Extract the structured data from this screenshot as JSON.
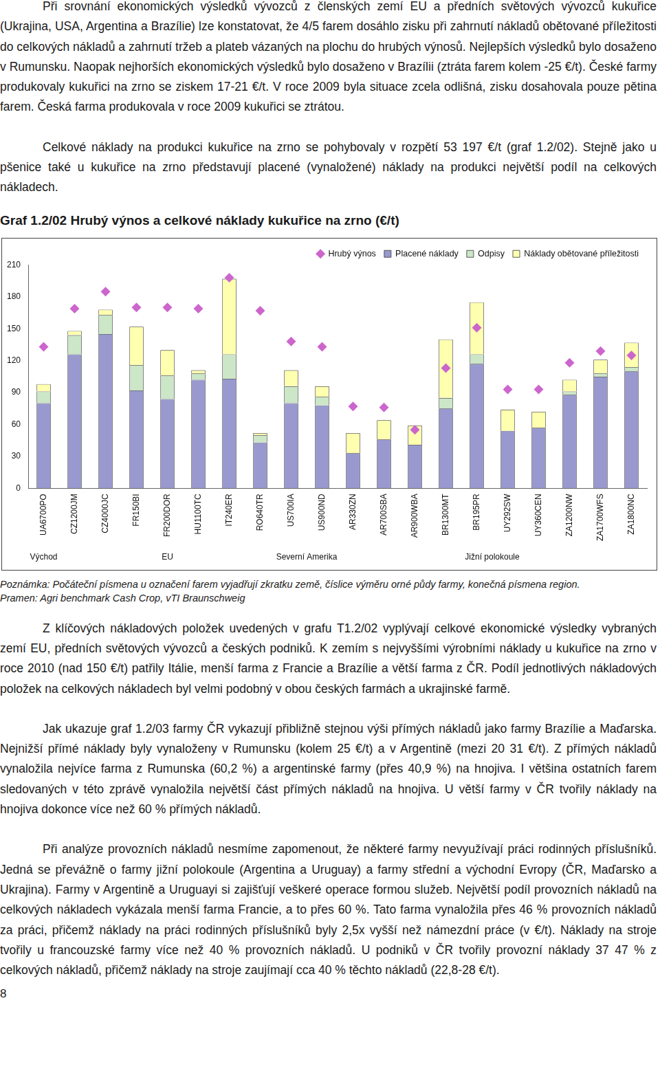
{
  "paragraphs_top": [
    "Při srovnání ekonomických výsledků vývozců z členských zemí EU a předních světových vývozců kukuřice (Ukrajina, USA, Argentina a Brazílie) lze konstatovat, že 4/5 farem dosáhlo zisku při zahrnutí nákladů obětované příležitosti do celkových nákladů a zahrnutí tržeb a plateb vázaných na plochu do hrubých výnosů. Nejlepších výsledků bylo dosaženo v Rumunsku. Naopak nejhorších ekonomických výsledků bylo dosaženo v Brazílii (ztráta farem kolem -25 €/t). České farmy produkovaly kukuřici na zrno se ziskem 17-21 €/t. V roce 2009 byla situace zcela odlišná, zisku dosahovala pouze pětina farem. Česká farma produkovala v roce 2009 kukuřici se ztrátou.",
    "Celkové náklady na produkci kukuřice na zrno se pohybovaly v rozpětí 53 197 €/t (graf 1.2/02). Stejně jako u pšenice také u kukuřice na zrno představují placené (vynaložené) náklady na produkci největší podíl na celkových nákladech."
  ],
  "chart_title": "Graf 1.2/02 Hrubý výnos a celkové náklady kukuřice na zrno (€/t)",
  "chart_data": {
    "type": "bar",
    "stacked": true,
    "categories": [
      "UA6700PO",
      "CZ1200JM",
      "CZ4000JC",
      "FR150BI",
      "FR200DOR",
      "HU1100TC",
      "IT240ER",
      "RO640TR",
      "US700IA",
      "US900ND",
      "AR330ZN",
      "AR700SBA",
      "AR900WBA",
      "BR1300MT",
      "BR195PR",
      "UY292SW",
      "UY360CEN",
      "ZA1200NW",
      "ZA1700WFS",
      "ZA1800NC"
    ],
    "series": [
      {
        "name": "Placené náklady",
        "type": "bar",
        "color": "#9999d0",
        "values": [
          80,
          126,
          145,
          92,
          84,
          102,
          103,
          43,
          80,
          78,
          33,
          46,
          41,
          75,
          117,
          54,
          57,
          88,
          105,
          110
        ]
      },
      {
        "name": "Odpisy",
        "type": "bar",
        "color": "#cce6c8",
        "values": [
          11,
          18,
          18,
          24,
          22,
          6,
          23,
          7,
          16,
          8,
          0,
          0,
          0,
          10,
          9,
          0,
          0,
          3,
          3,
          4
        ]
      },
      {
        "name": "Náklady obětované příležitosti",
        "type": "bar",
        "color": "#ffffb0",
        "values": [
          7,
          4,
          5,
          36,
          24,
          3,
          71,
          2,
          15,
          10,
          19,
          18,
          18,
          55,
          49,
          20,
          15,
          11,
          13,
          23
        ]
      },
      {
        "name": "Hrubý výnos",
        "type": "scatter",
        "marker": "diamond",
        "color": "#cc66cc",
        "values": [
          133,
          169,
          185,
          170,
          170,
          169,
          198,
          167,
          138,
          133,
          77,
          76,
          55,
          113,
          151,
          93,
          93,
          118,
          129,
          125
        ]
      }
    ],
    "groups": [
      {
        "label": "Východ",
        "from": "UA6700PO",
        "to": "UA6700PO"
      },
      {
        "label": "EU",
        "from": "CZ1200JM",
        "to": "RO640TR"
      },
      {
        "label": "Severní Amerika",
        "from": "US700IA",
        "to": "US900ND"
      },
      {
        "label": "Jižní polokoule",
        "from": "AR330ZN",
        "to": "ZA1800NC"
      }
    ],
    "ylim": [
      0,
      210
    ],
    "yticks": [
      0,
      30,
      60,
      90,
      120,
      150,
      180,
      210
    ],
    "grid": false,
    "legend": "top"
  },
  "note": "Poznámka: Počáteční písmena u označení farem vyjadřují zkratku země, číslice výměru orné půdy farmy, konečná písmena region.",
  "source": "Pramen: Agri benchmark Cash Crop, vTI Braunschweig",
  "paragraphs_bottom": [
    "Z klíčových nákladových položek uvedených v grafu T1.2/02 vyplývají celkové ekonomické výsledky vybraných zemí EU, předních světových vývozců a českých podniků. K zemím s nejvyššími výrobními náklady u kukuřice na zrno v roce 2010 (nad 150 €/t) patřily Itálie, menší farma z Francie a Brazílie a větší farma z ČR. Podíl jednotlivých nákladových položek na celkových nákladech byl velmi podobný v obou českých farmách a ukrajinské farmě.",
    "Jak ukazuje graf 1.2/03 farmy ČR vykazují přibližně stejnou výši přímých nákladů jako farmy Brazílie a Maďarska. Nejnižší přímé náklady byly vynaloženy v Rumunsku (kolem 25 €/t) a v Argentině (mezi 20 31 €/t). Z přímých nákladů vynaložila nejvíce farma z Rumunska (60,2 %) a argentinské farmy (přes 40,9 %) na hnojiva. I většina ostatních farem sledovaných v této zprávě vynaložila největší část přímých nákladů na hnojiva. U větší farmy v ČR tvořily náklady na hnojiva dokonce více než 60 % přímých nákladů.",
    "Při analýze provozních nákladů nesmíme zapomenout, že některé farmy nevyužívají práci rodinných příslušníků. Jedná se převážně o farmy jižní polokoule (Argentina a Uruguay) a farmy střední a východní Evropy (ČR, Maďarsko a Ukrajina). Farmy v Argentině a Uruguayi si zajišťují veškeré operace formou služeb. Největší podíl provozních nákladů na celkových nákladech vykázala menší farma Francie, a to přes 60 %. Tato farma vynaložila přes 46 % provozních nákladů za práci, přičemž náklady na práci rodinných příslušníků byly 2,5x vyšší než námezdní práce (v €/t). Náklady na stroje tvořily u francouzské farmy více než 40 % provozních nákladů. U podniků v ČR tvořily provozní náklady 37 47 % z celkových nákladů, přičemž náklady na stroje zaujímají cca 40 % těchto nákladů (22,8-28 €/t)."
  ],
  "page_number": "8"
}
